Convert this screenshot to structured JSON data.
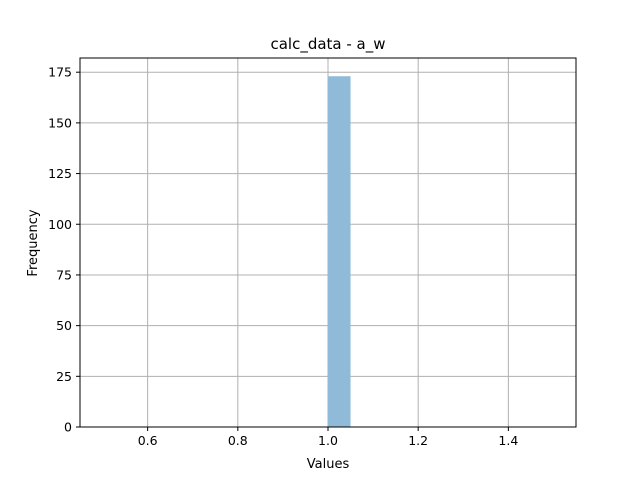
{
  "chart_data": {
    "type": "bar",
    "title": "calc_data - a_w",
    "xlabel": "Values",
    "ylabel": "Frequency",
    "xlim": [
      0.45,
      1.55
    ],
    "ylim": [
      0,
      182
    ],
    "x_ticks": [
      0.6,
      0.8,
      1.0,
      1.2,
      1.4
    ],
    "x_tick_labels": [
      "0.6",
      "0.8",
      "1.0",
      "1.2",
      "1.4"
    ],
    "y_ticks": [
      0,
      25,
      50,
      75,
      100,
      125,
      150,
      175
    ],
    "y_tick_labels": [
      "0",
      "25",
      "50",
      "75",
      "100",
      "125",
      "150",
      "175"
    ],
    "bins": [
      {
        "x0": 1.0,
        "x1": 1.05,
        "count": 173
      }
    ],
    "grid": true,
    "colors": {
      "bar": "#8fbbd9",
      "grid": "#b0b0b0",
      "axis": "#000000"
    }
  }
}
